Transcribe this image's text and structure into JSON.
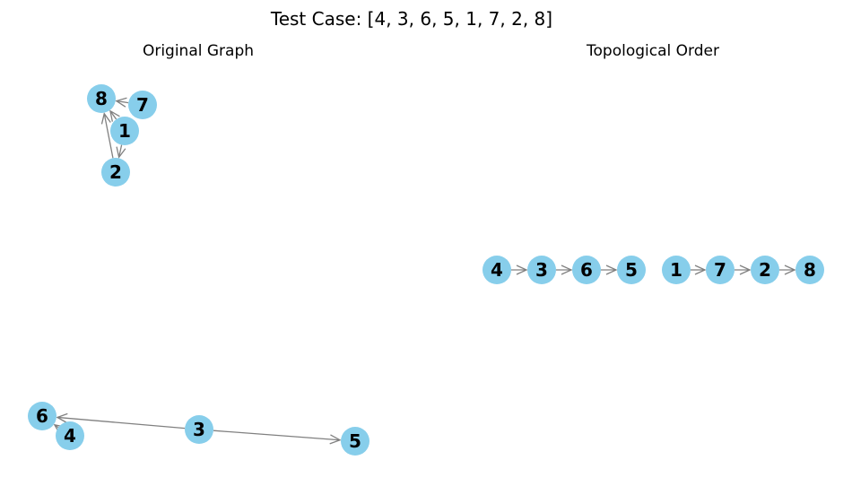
{
  "figure": {
    "title": "Test Case: [4, 3, 6, 5, 1, 7, 2, 8]"
  },
  "colors": {
    "node_fill": "#87CEEB",
    "edge": "#808080",
    "label": "#000000"
  },
  "panels": [
    {
      "title": "Original Graph",
      "nodes": [
        "8",
        "7",
        "1",
        "2",
        "6",
        "4",
        "3",
        "5"
      ],
      "edges": [
        {
          "from": "7",
          "to": "8"
        },
        {
          "from": "1",
          "to": "8"
        },
        {
          "from": "1",
          "to": "2"
        },
        {
          "from": "2",
          "to": "8"
        },
        {
          "from": "4",
          "to": "6"
        },
        {
          "from": "3",
          "to": "6"
        },
        {
          "from": "3",
          "to": "5"
        }
      ]
    },
    {
      "title": "Topological Order",
      "nodes": [
        "4",
        "3",
        "6",
        "5",
        "1",
        "7",
        "2",
        "8"
      ],
      "edges": [
        {
          "from": "4",
          "to": "3"
        },
        {
          "from": "3",
          "to": "6"
        },
        {
          "from": "6",
          "to": "5"
        },
        {
          "from": "1",
          "to": "7"
        },
        {
          "from": "7",
          "to": "2"
        },
        {
          "from": "2",
          "to": "8"
        }
      ]
    }
  ]
}
